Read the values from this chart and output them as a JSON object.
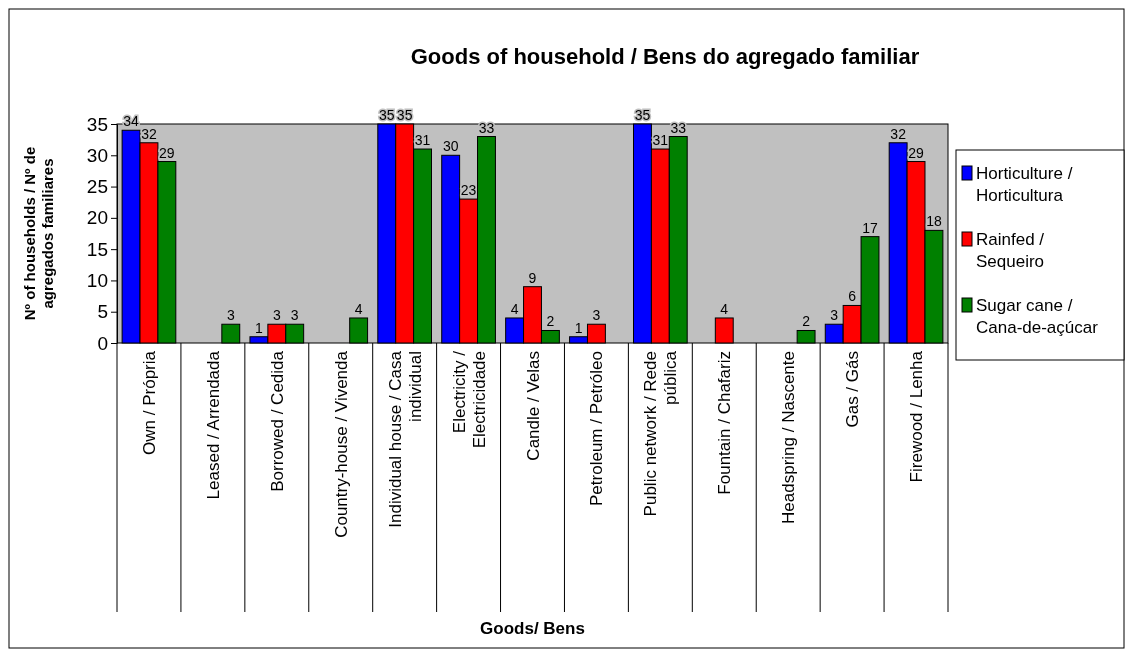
{
  "chart_data": {
    "type": "bar",
    "title": "Goods of household / Bens do agregado familiar",
    "xlabel": "Goods/ Bens",
    "ylabel": "Nº of households / Nº de agregados familiares",
    "categories": [
      "Own / Própria",
      "Leased / Arrendada",
      "Borrowed / Cedida",
      "Country-house / Vivenda",
      "Individual house / Casa individual",
      "Electricity / Electricidade",
      "Candle / Velas",
      "Petroleum / Petróleo",
      "Public network / Rede pública",
      "Fountain / Chafariz",
      "Headspring / Nascente",
      "Gas / Gás",
      "Firewood / Lenha"
    ],
    "series": [
      {
        "name": "Horticulture / Horticultura",
        "color": "#0000ff",
        "values": [
          34,
          null,
          1,
          null,
          35,
          30,
          4,
          1,
          35,
          null,
          null,
          3,
          32
        ]
      },
      {
        "name": "Rainfed / Sequeiro",
        "color": "#ff0000",
        "values": [
          32,
          null,
          3,
          null,
          35,
          23,
          9,
          3,
          31,
          4,
          null,
          6,
          29
        ]
      },
      {
        "name": "Sugar cane / Cana-de-açúcar",
        "color": "#008000",
        "values": [
          29,
          3,
          3,
          4,
          31,
          33,
          2,
          null,
          33,
          null,
          2,
          17,
          18
        ]
      }
    ],
    "ylim": [
      0,
      35
    ],
    "yticks": [
      0,
      5,
      10,
      15,
      20,
      25,
      30,
      35
    ],
    "data_labels": true,
    "legend": "right"
  }
}
